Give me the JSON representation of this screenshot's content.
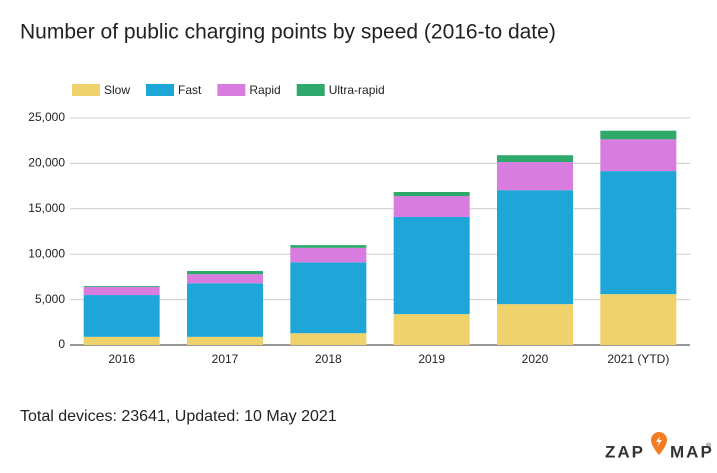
{
  "chart_data": {
    "type": "stacked_bar",
    "title": "Number of public charging points by speed (2016-to date)",
    "categories": [
      "2016",
      "2017",
      "2018",
      "2019",
      "2020",
      "2021 (YTD)"
    ],
    "series": [
      {
        "name": "Slow",
        "color": "#efd26c",
        "values": [
          900,
          900,
          1300,
          3400,
          4500,
          5600
        ]
      },
      {
        "name": "Fast",
        "color": "#1ea6d9",
        "values": [
          4600,
          5900,
          7800,
          10700,
          12550,
          13550
        ]
      },
      {
        "name": "Rapid",
        "color": "#d87ddf",
        "values": [
          900,
          1000,
          1600,
          2300,
          3100,
          3500
        ]
      },
      {
        "name": "Ultra-rapid",
        "color": "#2ea96b",
        "values": [
          100,
          350,
          300,
          450,
          750,
          950
        ]
      }
    ],
    "ylim": [
      0,
      25000
    ],
    "yticks": [
      0,
      {
        "value": 5000,
        "label": "5,000"
      },
      {
        "value": 10000,
        "label": "10,000"
      },
      {
        "value": 15000,
        "label": "15,000"
      },
      {
        "value": 20000,
        "label": "20,000"
      },
      {
        "value": 25000,
        "label": "25,000"
      }
    ],
    "grid": true,
    "legend": "top"
  },
  "footer": "Total devices: 23641, Updated: 10 May 2021",
  "logo": {
    "left": "ZAP",
    "right": "MAP",
    "mark": "®"
  }
}
